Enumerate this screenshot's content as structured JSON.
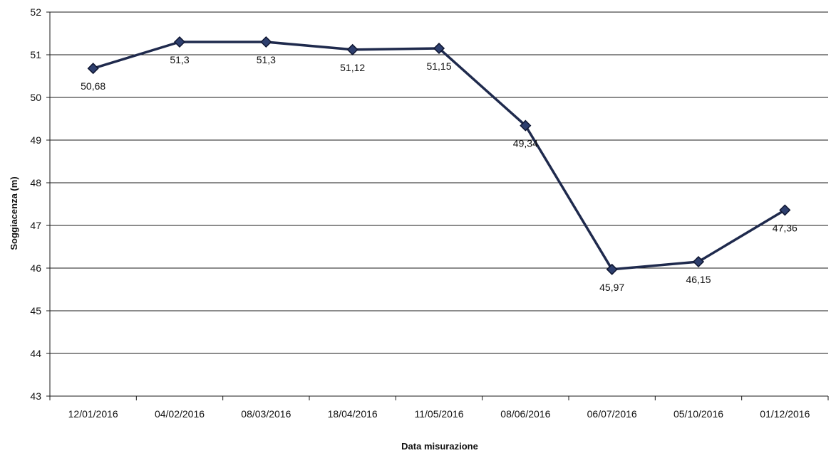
{
  "chart_data": {
    "type": "line",
    "title": "",
    "xlabel": "Data misurazione",
    "ylabel": "Soggiacenza (m)",
    "ylim": [
      43,
      52
    ],
    "yticks": [
      43,
      44,
      45,
      46,
      47,
      48,
      49,
      50,
      51,
      52
    ],
    "grid": true,
    "legend": "none",
    "categories": [
      "12/01/2016",
      "04/02/2016",
      "08/03/2016",
      "18/04/2016",
      "11/05/2016",
      "08/06/2016",
      "06/07/2016",
      "05/10/2016",
      "01/12/2016"
    ],
    "series": [
      {
        "values": [
          50.68,
          51.3,
          51.3,
          51.12,
          51.15,
          49.34,
          45.97,
          46.15,
          47.36
        ],
        "labels": [
          "50,68",
          "51,3",
          "51,3",
          "51,12",
          "51,15",
          "49,34",
          "45,97",
          "46,15",
          "47,36"
        ],
        "color": "#1f2a4d",
        "marker": "diamond"
      }
    ]
  }
}
